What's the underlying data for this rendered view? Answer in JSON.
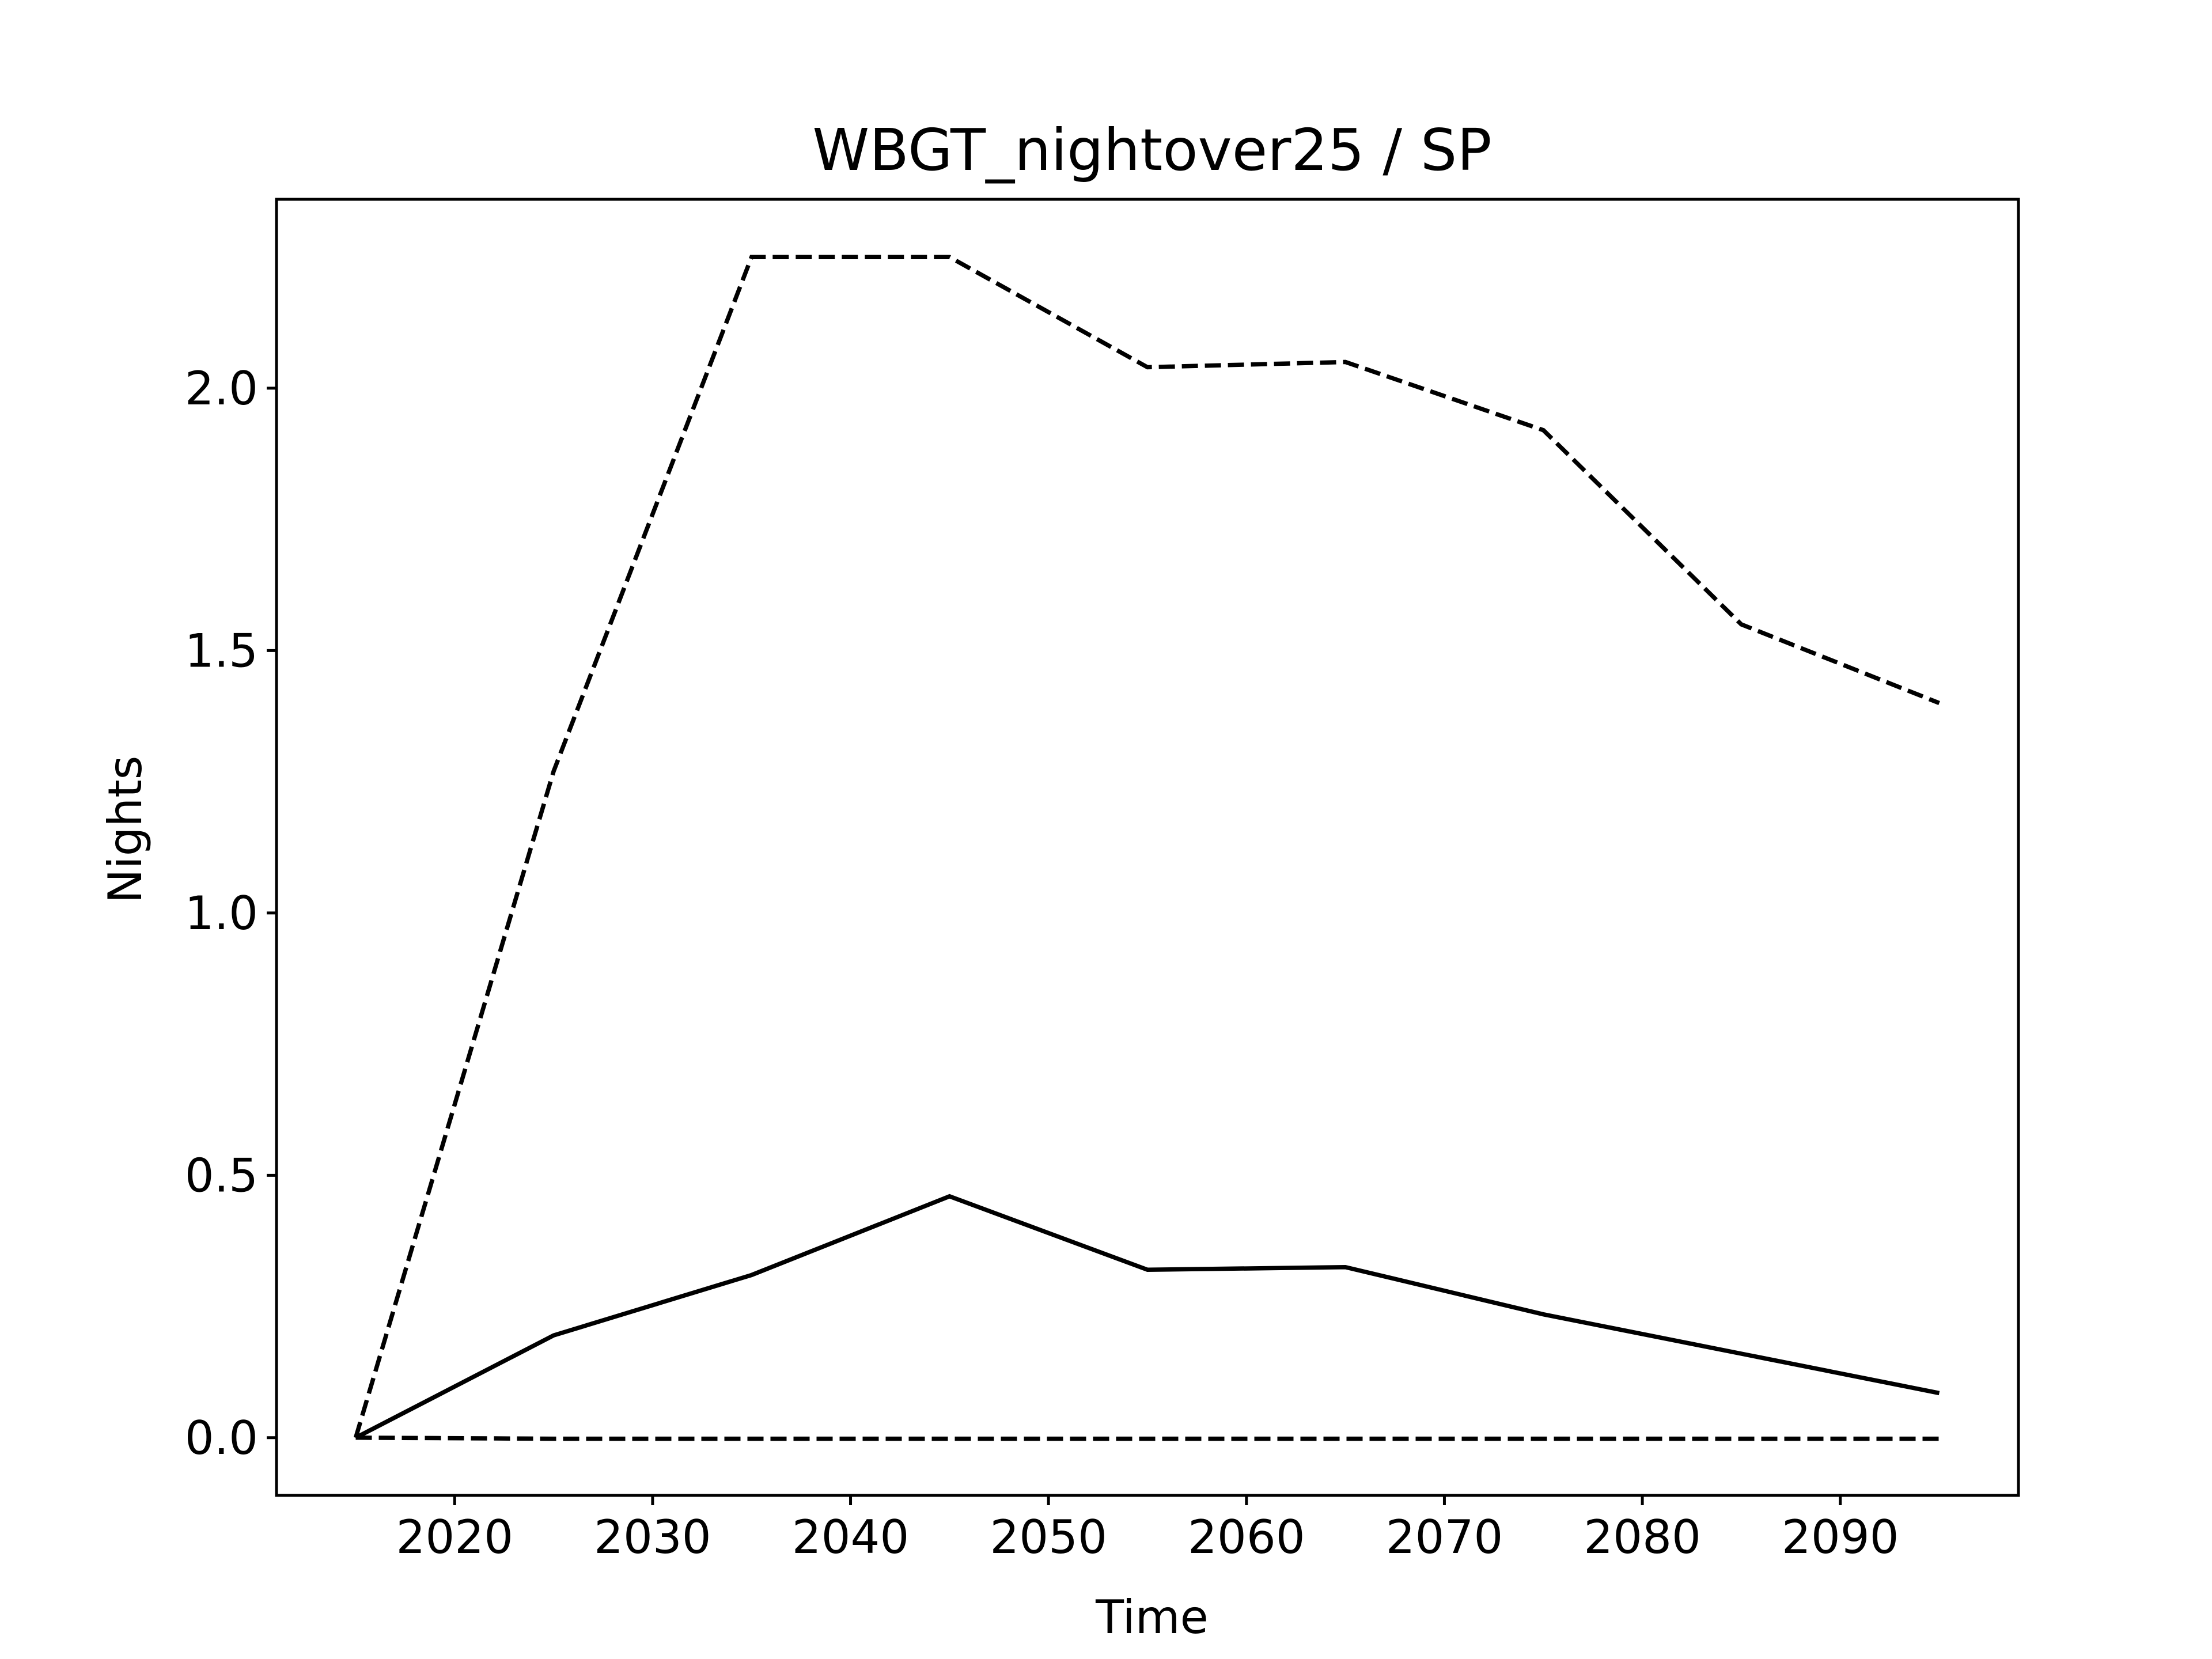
{
  "chart_data": {
    "type": "line",
    "title": "WBGT_nightover25 / SP",
    "xlabel": "Time",
    "ylabel": "Nights",
    "xlim": [
      2011,
      2099
    ],
    "ylim": [
      -0.11,
      2.36
    ],
    "xticks": [
      2020,
      2030,
      2040,
      2050,
      2060,
      2070,
      2080,
      2090
    ],
    "yticks": [
      0.0,
      0.5,
      1.0,
      1.5,
      2.0
    ],
    "ytick_labels": [
      "0.0",
      "0.5",
      "1.0",
      "1.5",
      "2.0"
    ],
    "grid": false,
    "x": [
      2015,
      2025,
      2035,
      2045,
      2055,
      2065,
      2075,
      2085,
      2095
    ],
    "series": [
      {
        "style": "dashed",
        "color": "#000000",
        "values": [
          0.0,
          1.27,
          2.25,
          2.25,
          2.04,
          2.05,
          1.92,
          1.55,
          1.4
        ]
      },
      {
        "style": "solid",
        "color": "#000000",
        "values": [
          0.0,
          0.195,
          0.31,
          0.46,
          0.32,
          0.325,
          0.235,
          0.16,
          0.085
        ]
      },
      {
        "style": "dashed",
        "color": "#000000",
        "values": [
          0.0,
          -0.002,
          -0.002,
          -0.002,
          -0.002,
          -0.002,
          -0.002,
          -0.002,
          -0.002
        ]
      }
    ]
  }
}
